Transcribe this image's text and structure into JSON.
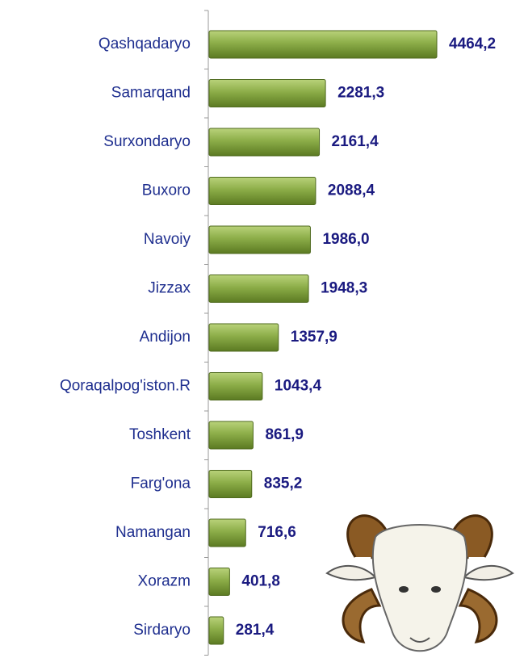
{
  "chart_data": {
    "type": "bar",
    "orientation": "horizontal",
    "categories": [
      "Qashqadaryo",
      "Samarqand",
      "Surxondaryo",
      "Buxoro",
      "Navoiy",
      "Jizzax",
      "Andijon",
      "Qoraqalpog'iston.R",
      "Toshkent",
      "Farg'ona",
      "Namangan",
      "Xorazm",
      "Sirdaryo"
    ],
    "values": [
      4464.2,
      2281.3,
      2161.4,
      2088.4,
      1986.0,
      1948.3,
      1357.9,
      1043.4,
      861.9,
      835.2,
      716.6,
      401.8,
      281.4
    ],
    "value_labels": [
      "4464,2",
      "2281,3",
      "2161,4",
      "2088,4",
      "1986,0",
      "1948,3",
      "1357,9",
      "1043,4",
      "861,9",
      "835,2",
      "716,6",
      "401,8",
      "281,4"
    ],
    "color": "#7a9a3a"
  }
}
